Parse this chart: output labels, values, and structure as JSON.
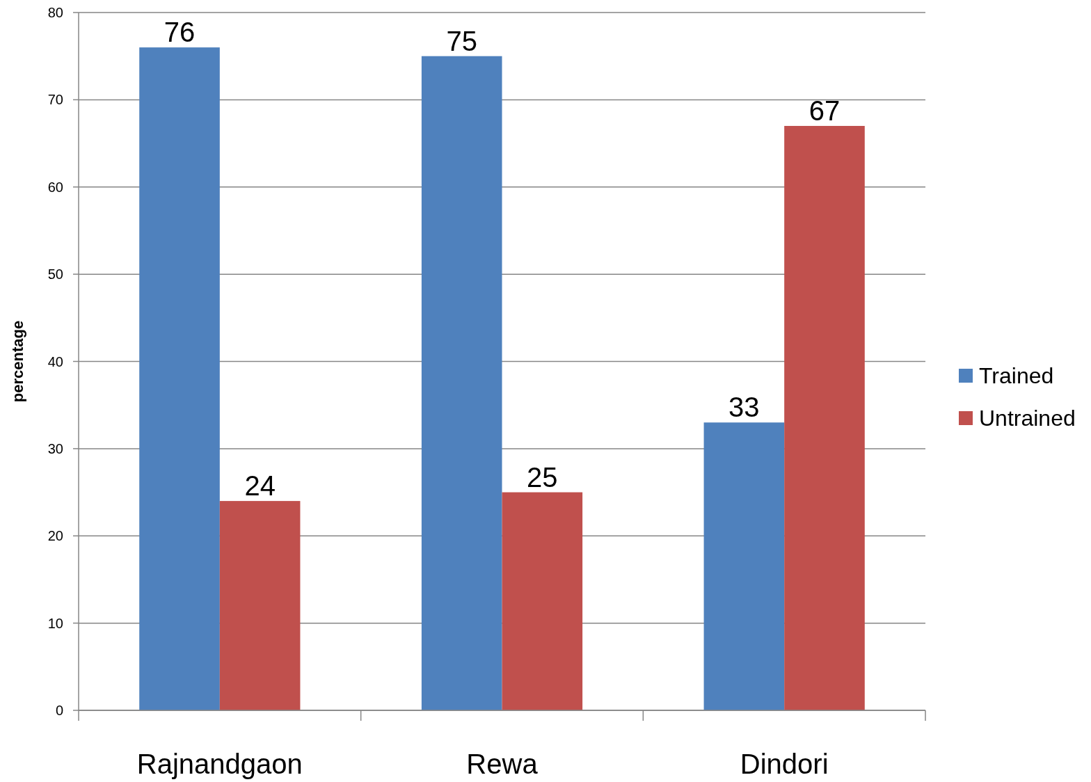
{
  "chart_data": {
    "type": "bar",
    "ylabel": "percentage",
    "categories": [
      "Rajnandgaon",
      "Rewa",
      "Dindori"
    ],
    "series": [
      {
        "name": "Trained",
        "color": "#4f81bd",
        "values": [
          76,
          75,
          33
        ]
      },
      {
        "name": "Untrained",
        "color": "#c0504d",
        "values": [
          24,
          25,
          67
        ]
      }
    ],
    "ylim": [
      0,
      80
    ],
    "yticks": [
      0,
      10,
      20,
      30,
      40,
      50,
      60,
      70,
      80
    ],
    "grid": "y",
    "legend": "right",
    "data_labels": true
  }
}
